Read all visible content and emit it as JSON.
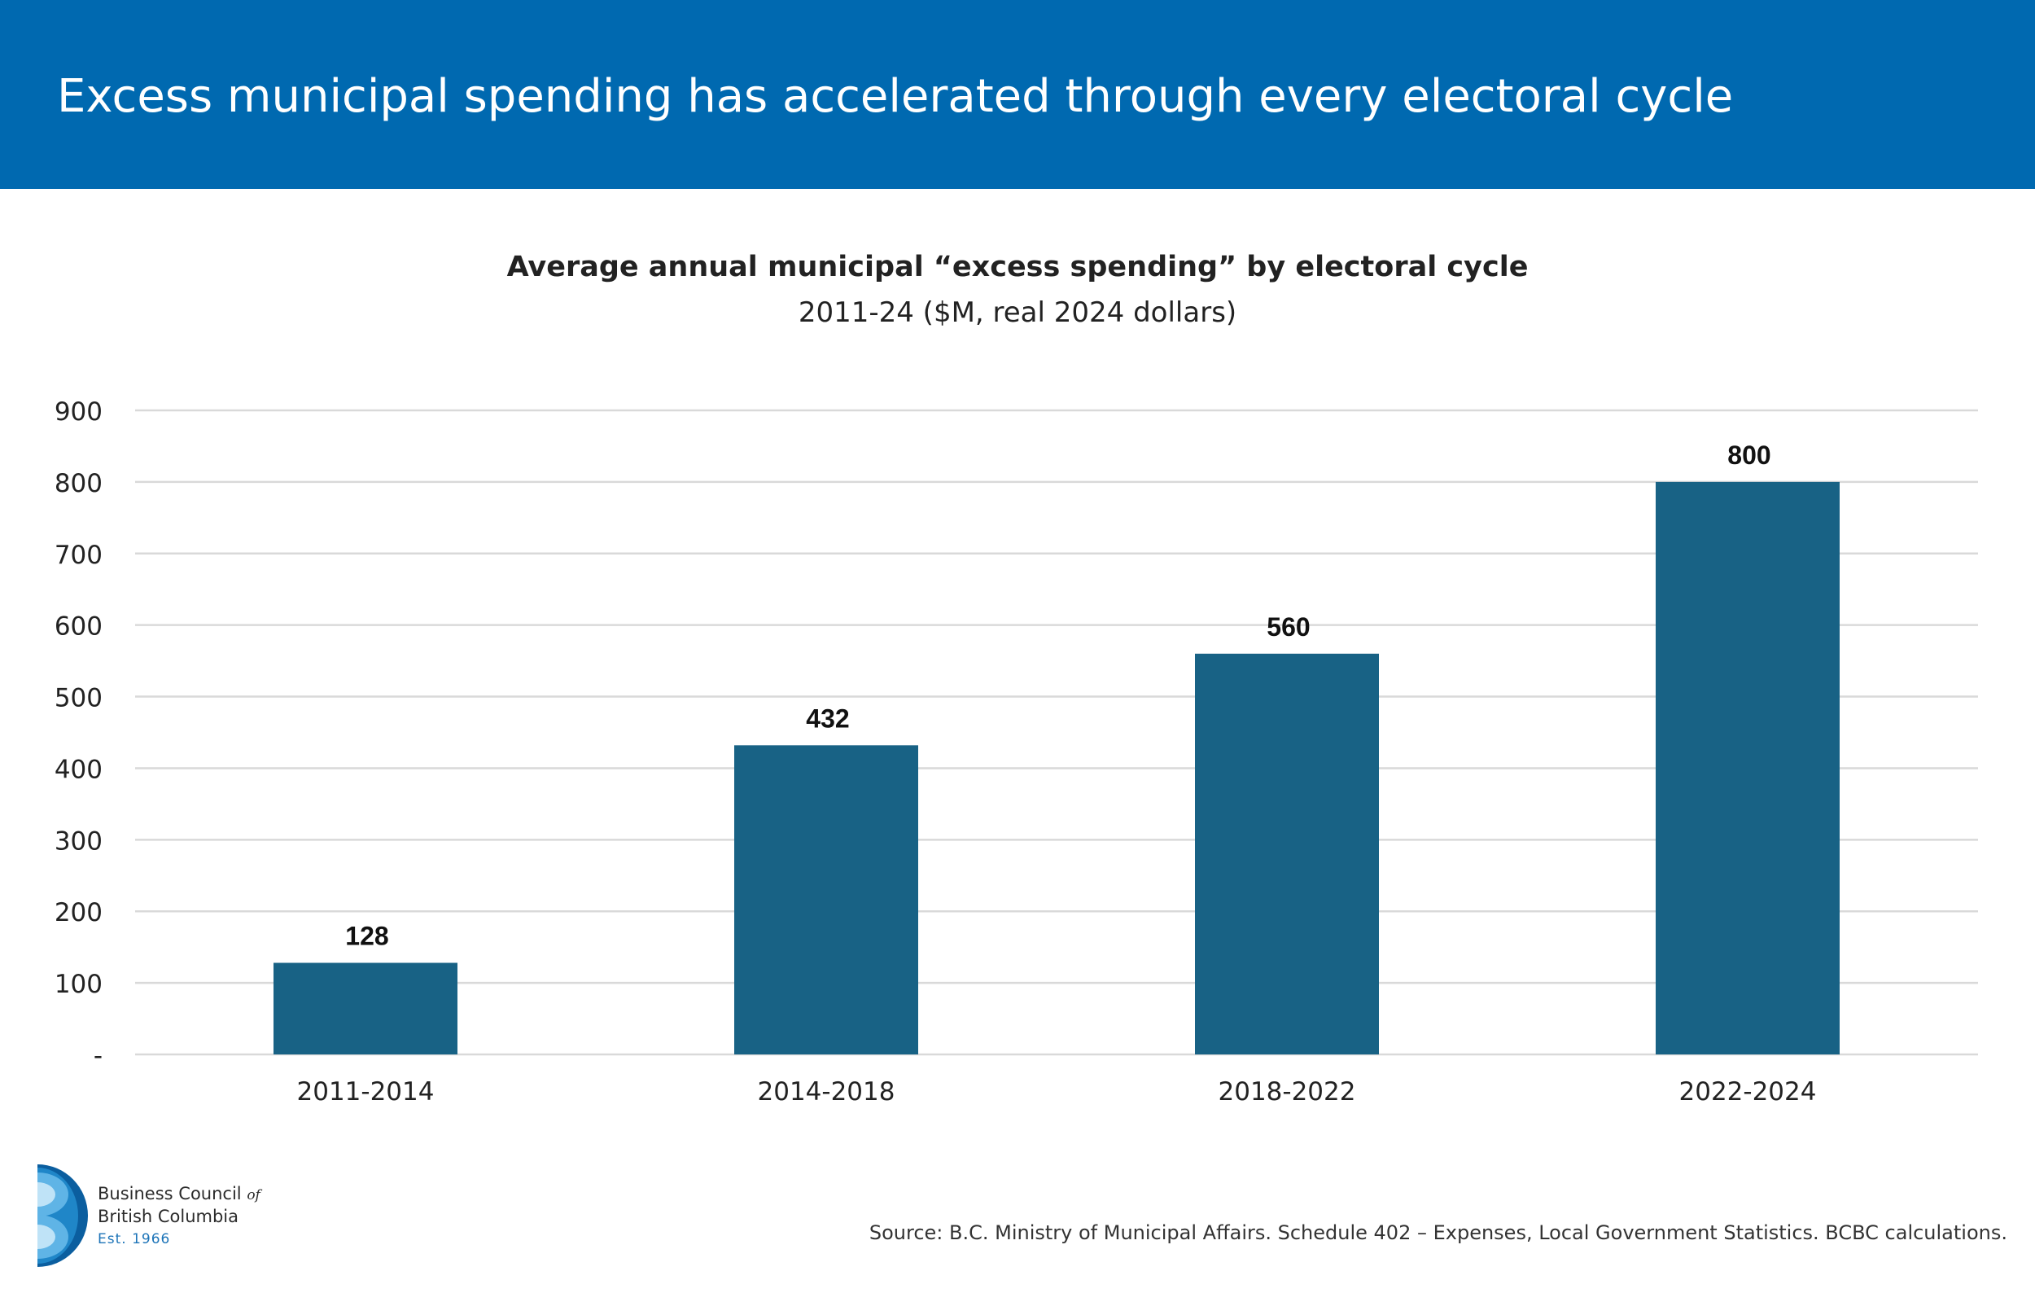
{
  "header": {
    "title": "Excess municipal spending has accelerated through every electoral cycle"
  },
  "colors": {
    "banner": "#0069b0",
    "bar": "#186285",
    "gridline": "#d9d9d9"
  },
  "chart_data": {
    "type": "bar",
    "title": "Average annual municipal “excess spending” by electoral cycle",
    "subtitle": "2011-24 ($M, real 2024 dollars)",
    "xlabel": "",
    "ylabel": "",
    "categories": [
      "2011-2014",
      "2014-2018",
      "2018-2022",
      "2022-2024"
    ],
    "values": [
      128,
      432,
      560,
      800
    ],
    "data_labels": [
      "128",
      "432",
      "560",
      "800"
    ],
    "ylim": [
      0,
      900
    ],
    "yticks": [
      0,
      100,
      200,
      300,
      400,
      500,
      600,
      700,
      800,
      900
    ],
    "ytick_labels": [
      "-",
      "100",
      "200",
      "300",
      "400",
      "500",
      "600",
      "700",
      "800",
      "900"
    ],
    "grid": true,
    "legend": "none"
  },
  "logo": {
    "line1": "Business Council",
    "of": "of",
    "line2": "British Columbia",
    "line3": "Est. 1966"
  },
  "footer": {
    "source": "Source: B.C. Ministry of Municipal Affairs. Schedule 402 – Expenses, Local Government Statistics. BCBC calculations."
  }
}
